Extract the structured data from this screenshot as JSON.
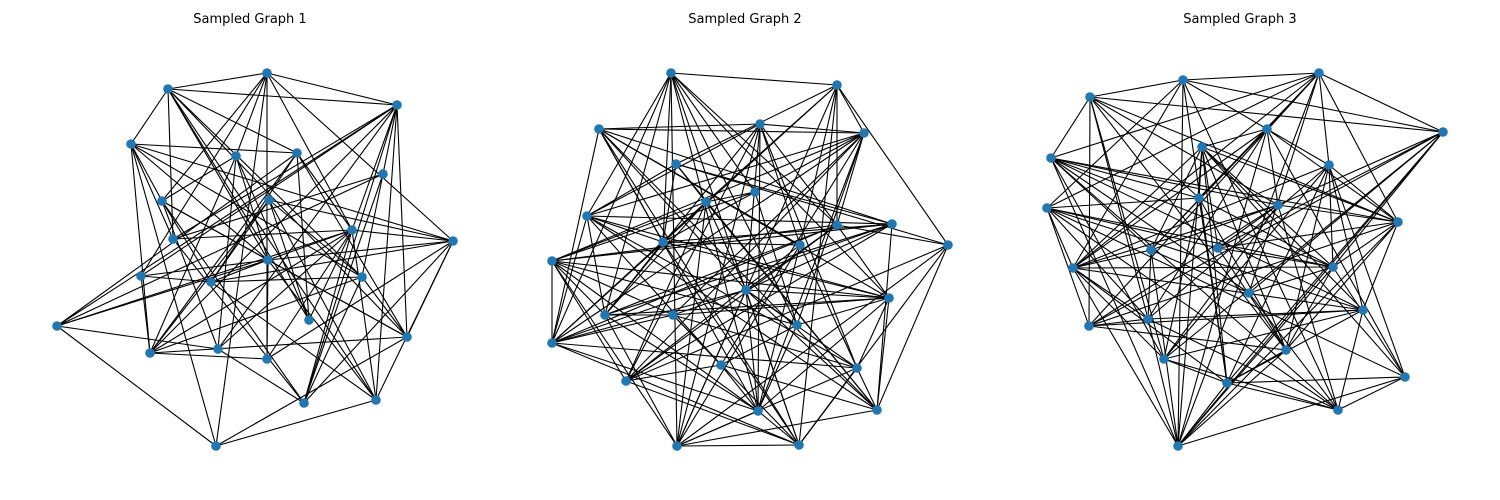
{
  "figure": {
    "node_color": "#1f77b4",
    "edge_color": "#000000",
    "background": "#ffffff"
  },
  "panels": [
    {
      "title": "Sampled Graph 1"
    },
    {
      "title": "Sampled Graph 2"
    },
    {
      "title": "Sampled Graph 3"
    }
  ]
}
